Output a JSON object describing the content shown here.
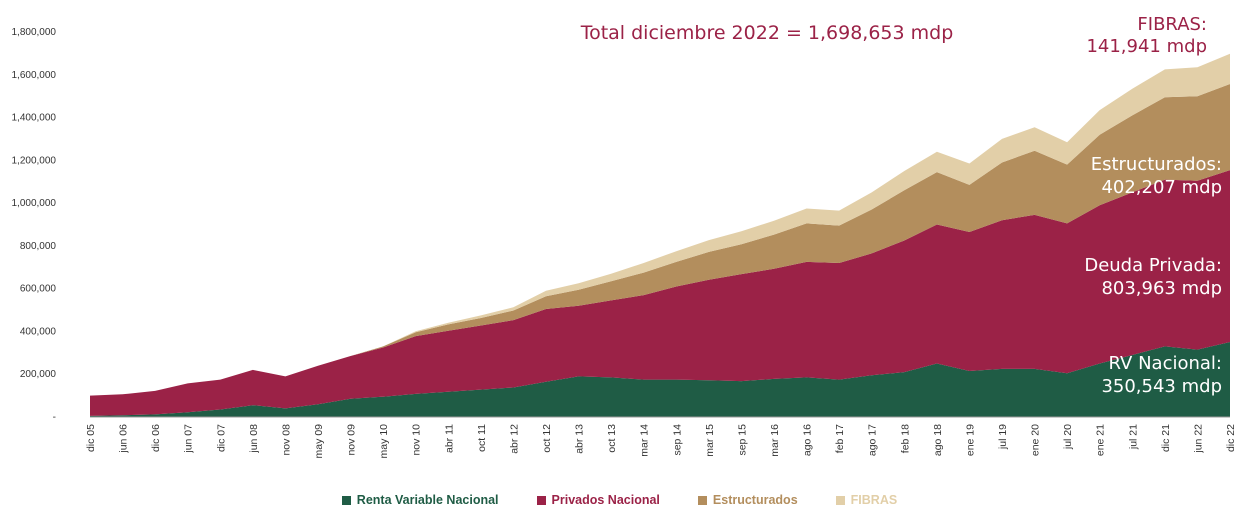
{
  "chart_data": {
    "type": "area",
    "stacked": true,
    "title": "",
    "xlabel": "",
    "ylabel": "",
    "ylim": [
      0,
      1800000
    ],
    "y_ticks": [
      "1,800,000",
      "1,600,000",
      "1,400,000",
      "1,200,000",
      "1,000,000",
      "800,000",
      "600,000",
      "400,000",
      "200,000",
      "-"
    ],
    "x_tick_labels": [
      "dic 05",
      "jun 06",
      "dic 06",
      "jun 07",
      "dic 07",
      "jun 08",
      "nov 08",
      "may 09",
      "nov 09",
      "may 10",
      "nov 10",
      "abr 11",
      "oct 11",
      "abr 12",
      "oct 12",
      "abr 13",
      "oct 13",
      "mar 14",
      "sep 14",
      "mar 15",
      "sep 15",
      "mar 16",
      "ago 16",
      "feb 17",
      "ago 17",
      "feb 18",
      "ago 18",
      "ene 19",
      "jul 19",
      "ene 20",
      "jul 20",
      "ene 21",
      "jul 21",
      "dic 21",
      "jun 22",
      "dic 22"
    ],
    "series": [
      {
        "name": "Renta Variable Nacional",
        "color": "#1f5c45",
        "values": [
          5000,
          8000,
          12000,
          22000,
          35000,
          55000,
          40000,
          60000,
          85000,
          95000,
          108000,
          118000,
          128000,
          138000,
          165000,
          190000,
          185000,
          175000,
          175000,
          172000,
          168000,
          178000,
          185000,
          175000,
          195000,
          210000,
          250000,
          215000,
          225000,
          225000,
          205000,
          250000,
          290000,
          330000,
          315000,
          350543
        ]
      },
      {
        "name": "Privados Nacional",
        "color": "#9b2247",
        "values": [
          95000,
          98000,
          110000,
          135000,
          140000,
          165000,
          150000,
          180000,
          200000,
          230000,
          270000,
          285000,
          300000,
          315000,
          340000,
          330000,
          360000,
          395000,
          435000,
          470000,
          500000,
          515000,
          540000,
          545000,
          570000,
          615000,
          650000,
          650000,
          695000,
          720000,
          700000,
          740000,
          760000,
          780000,
          790000,
          803963
        ]
      },
      {
        "name": "Estructurados",
        "color": "#b38e5d",
        "values": [
          0,
          0,
          0,
          0,
          0,
          0,
          0,
          0,
          0,
          5000,
          18000,
          30000,
          35000,
          45000,
          60000,
          75000,
          90000,
          105000,
          115000,
          130000,
          140000,
          160000,
          180000,
          175000,
          205000,
          235000,
          245000,
          220000,
          270000,
          300000,
          275000,
          330000,
          360000,
          385000,
          395000,
          402207
        ]
      },
      {
        "name": "FIBRAS",
        "color": "#e2cfa8",
        "values": [
          0,
          0,
          0,
          0,
          0,
          0,
          0,
          0,
          0,
          0,
          5000,
          8000,
          12000,
          15000,
          25000,
          30000,
          35000,
          45000,
          50000,
          55000,
          60000,
          65000,
          70000,
          70000,
          80000,
          90000,
          95000,
          100000,
          110000,
          110000,
          105000,
          115000,
          125000,
          130000,
          135000,
          141941
        ]
      }
    ],
    "annotations": {
      "total": "Total diciembre 2022 = 1,698,653 mdp",
      "fibras_label": "FIBRAS:",
      "fibras_value": "141,941 mdp",
      "estructurados_label": "Estructurados:",
      "estructurados_value": "402,207 mdp",
      "deuda_label": "Deuda Privada:",
      "deuda_value": "803,963 mdp",
      "rv_label": "RV Nacional:",
      "rv_value": "350,543 mdp"
    }
  },
  "legend": [
    {
      "label": "Renta Variable Nacional",
      "color": "#1f5c45"
    },
    {
      "label": "Privados Nacional",
      "color": "#9b2247"
    },
    {
      "label": "Estructurados",
      "color": "#b38e5d"
    },
    {
      "label": "FIBRAS",
      "color": "#e2cfa8"
    }
  ]
}
